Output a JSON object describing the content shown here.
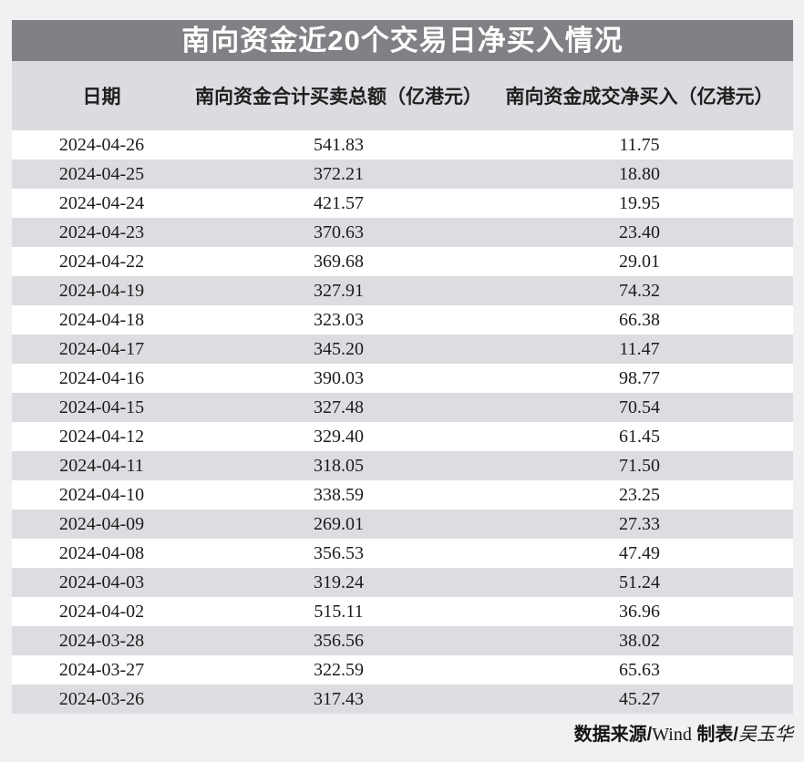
{
  "page": {
    "background": "#f0f1f3"
  },
  "table": {
    "title": "南向资金近20个交易日净买入情况",
    "title_bar_color": "#7f8184",
    "header_bg": "#dadce0",
    "row_alt_bg": "#dcdde0",
    "columns": [
      "日期",
      "南向资金合计买卖总额（亿港元）",
      "南向资金成交净买入（亿港元）"
    ],
    "rows": [
      {
        "date": "2024-04-26",
        "total": "541.83",
        "net": "11.75"
      },
      {
        "date": "2024-04-25",
        "total": "372.21",
        "net": "18.80"
      },
      {
        "date": "2024-04-24",
        "total": "421.57",
        "net": "19.95"
      },
      {
        "date": "2024-04-23",
        "total": "370.63",
        "net": "23.40"
      },
      {
        "date": "2024-04-22",
        "total": "369.68",
        "net": "29.01"
      },
      {
        "date": "2024-04-19",
        "total": "327.91",
        "net": "74.32"
      },
      {
        "date": "2024-04-18",
        "total": "323.03",
        "net": "66.38"
      },
      {
        "date": "2024-04-17",
        "total": "345.20",
        "net": "11.47"
      },
      {
        "date": "2024-04-16",
        "total": "390.03",
        "net": "98.77"
      },
      {
        "date": "2024-04-15",
        "total": "327.48",
        "net": "70.54"
      },
      {
        "date": "2024-04-12",
        "total": "329.40",
        "net": "61.45"
      },
      {
        "date": "2024-04-11",
        "total": "318.05",
        "net": "71.50"
      },
      {
        "date": "2024-04-10",
        "total": "338.59",
        "net": "23.25"
      },
      {
        "date": "2024-04-09",
        "total": "269.01",
        "net": "27.33"
      },
      {
        "date": "2024-04-08",
        "total": "356.53",
        "net": "47.49"
      },
      {
        "date": "2024-04-03",
        "total": "319.24",
        "net": "51.24"
      },
      {
        "date": "2024-04-02",
        "total": "515.11",
        "net": "36.96"
      },
      {
        "date": "2024-03-28",
        "total": "356.56",
        "net": "38.02"
      },
      {
        "date": "2024-03-27",
        "total": "322.59",
        "net": "65.63"
      },
      {
        "date": "2024-03-26",
        "total": "317.43",
        "net": "45.27"
      }
    ]
  },
  "footer": {
    "segments": [
      {
        "text": "数据来源/"
      },
      {
        "text": "Wind"
      },
      {
        "text": " 制表/"
      },
      {
        "text": "吴玉华"
      }
    ]
  },
  "chart_data": {
    "type": "table",
    "title": "南向资金近20个交易日净买入情况",
    "columns": [
      "日期",
      "南向资金合计买卖总额（亿港元）",
      "南向资金成交净买入（亿港元）"
    ],
    "rows": [
      [
        "2024-04-26",
        541.83,
        11.75
      ],
      [
        "2024-04-25",
        372.21,
        18.8
      ],
      [
        "2024-04-24",
        421.57,
        19.95
      ],
      [
        "2024-04-23",
        370.63,
        23.4
      ],
      [
        "2024-04-22",
        369.68,
        29.01
      ],
      [
        "2024-04-19",
        327.91,
        74.32
      ],
      [
        "2024-04-18",
        323.03,
        66.38
      ],
      [
        "2024-04-17",
        345.2,
        11.47
      ],
      [
        "2024-04-16",
        390.03,
        98.77
      ],
      [
        "2024-04-15",
        327.48,
        70.54
      ],
      [
        "2024-04-12",
        329.4,
        61.45
      ],
      [
        "2024-04-11",
        318.05,
        71.5
      ],
      [
        "2024-04-10",
        338.59,
        23.25
      ],
      [
        "2024-04-09",
        269.01,
        27.33
      ],
      [
        "2024-04-08",
        356.53,
        47.49
      ],
      [
        "2024-04-03",
        319.24,
        51.24
      ],
      [
        "2024-04-02",
        515.11,
        36.96
      ],
      [
        "2024-03-28",
        356.56,
        38.02
      ],
      [
        "2024-03-27",
        322.59,
        65.63
      ],
      [
        "2024-03-26",
        317.43,
        45.27
      ]
    ],
    "source": "数据来源/Wind 制表/吴玉华"
  }
}
